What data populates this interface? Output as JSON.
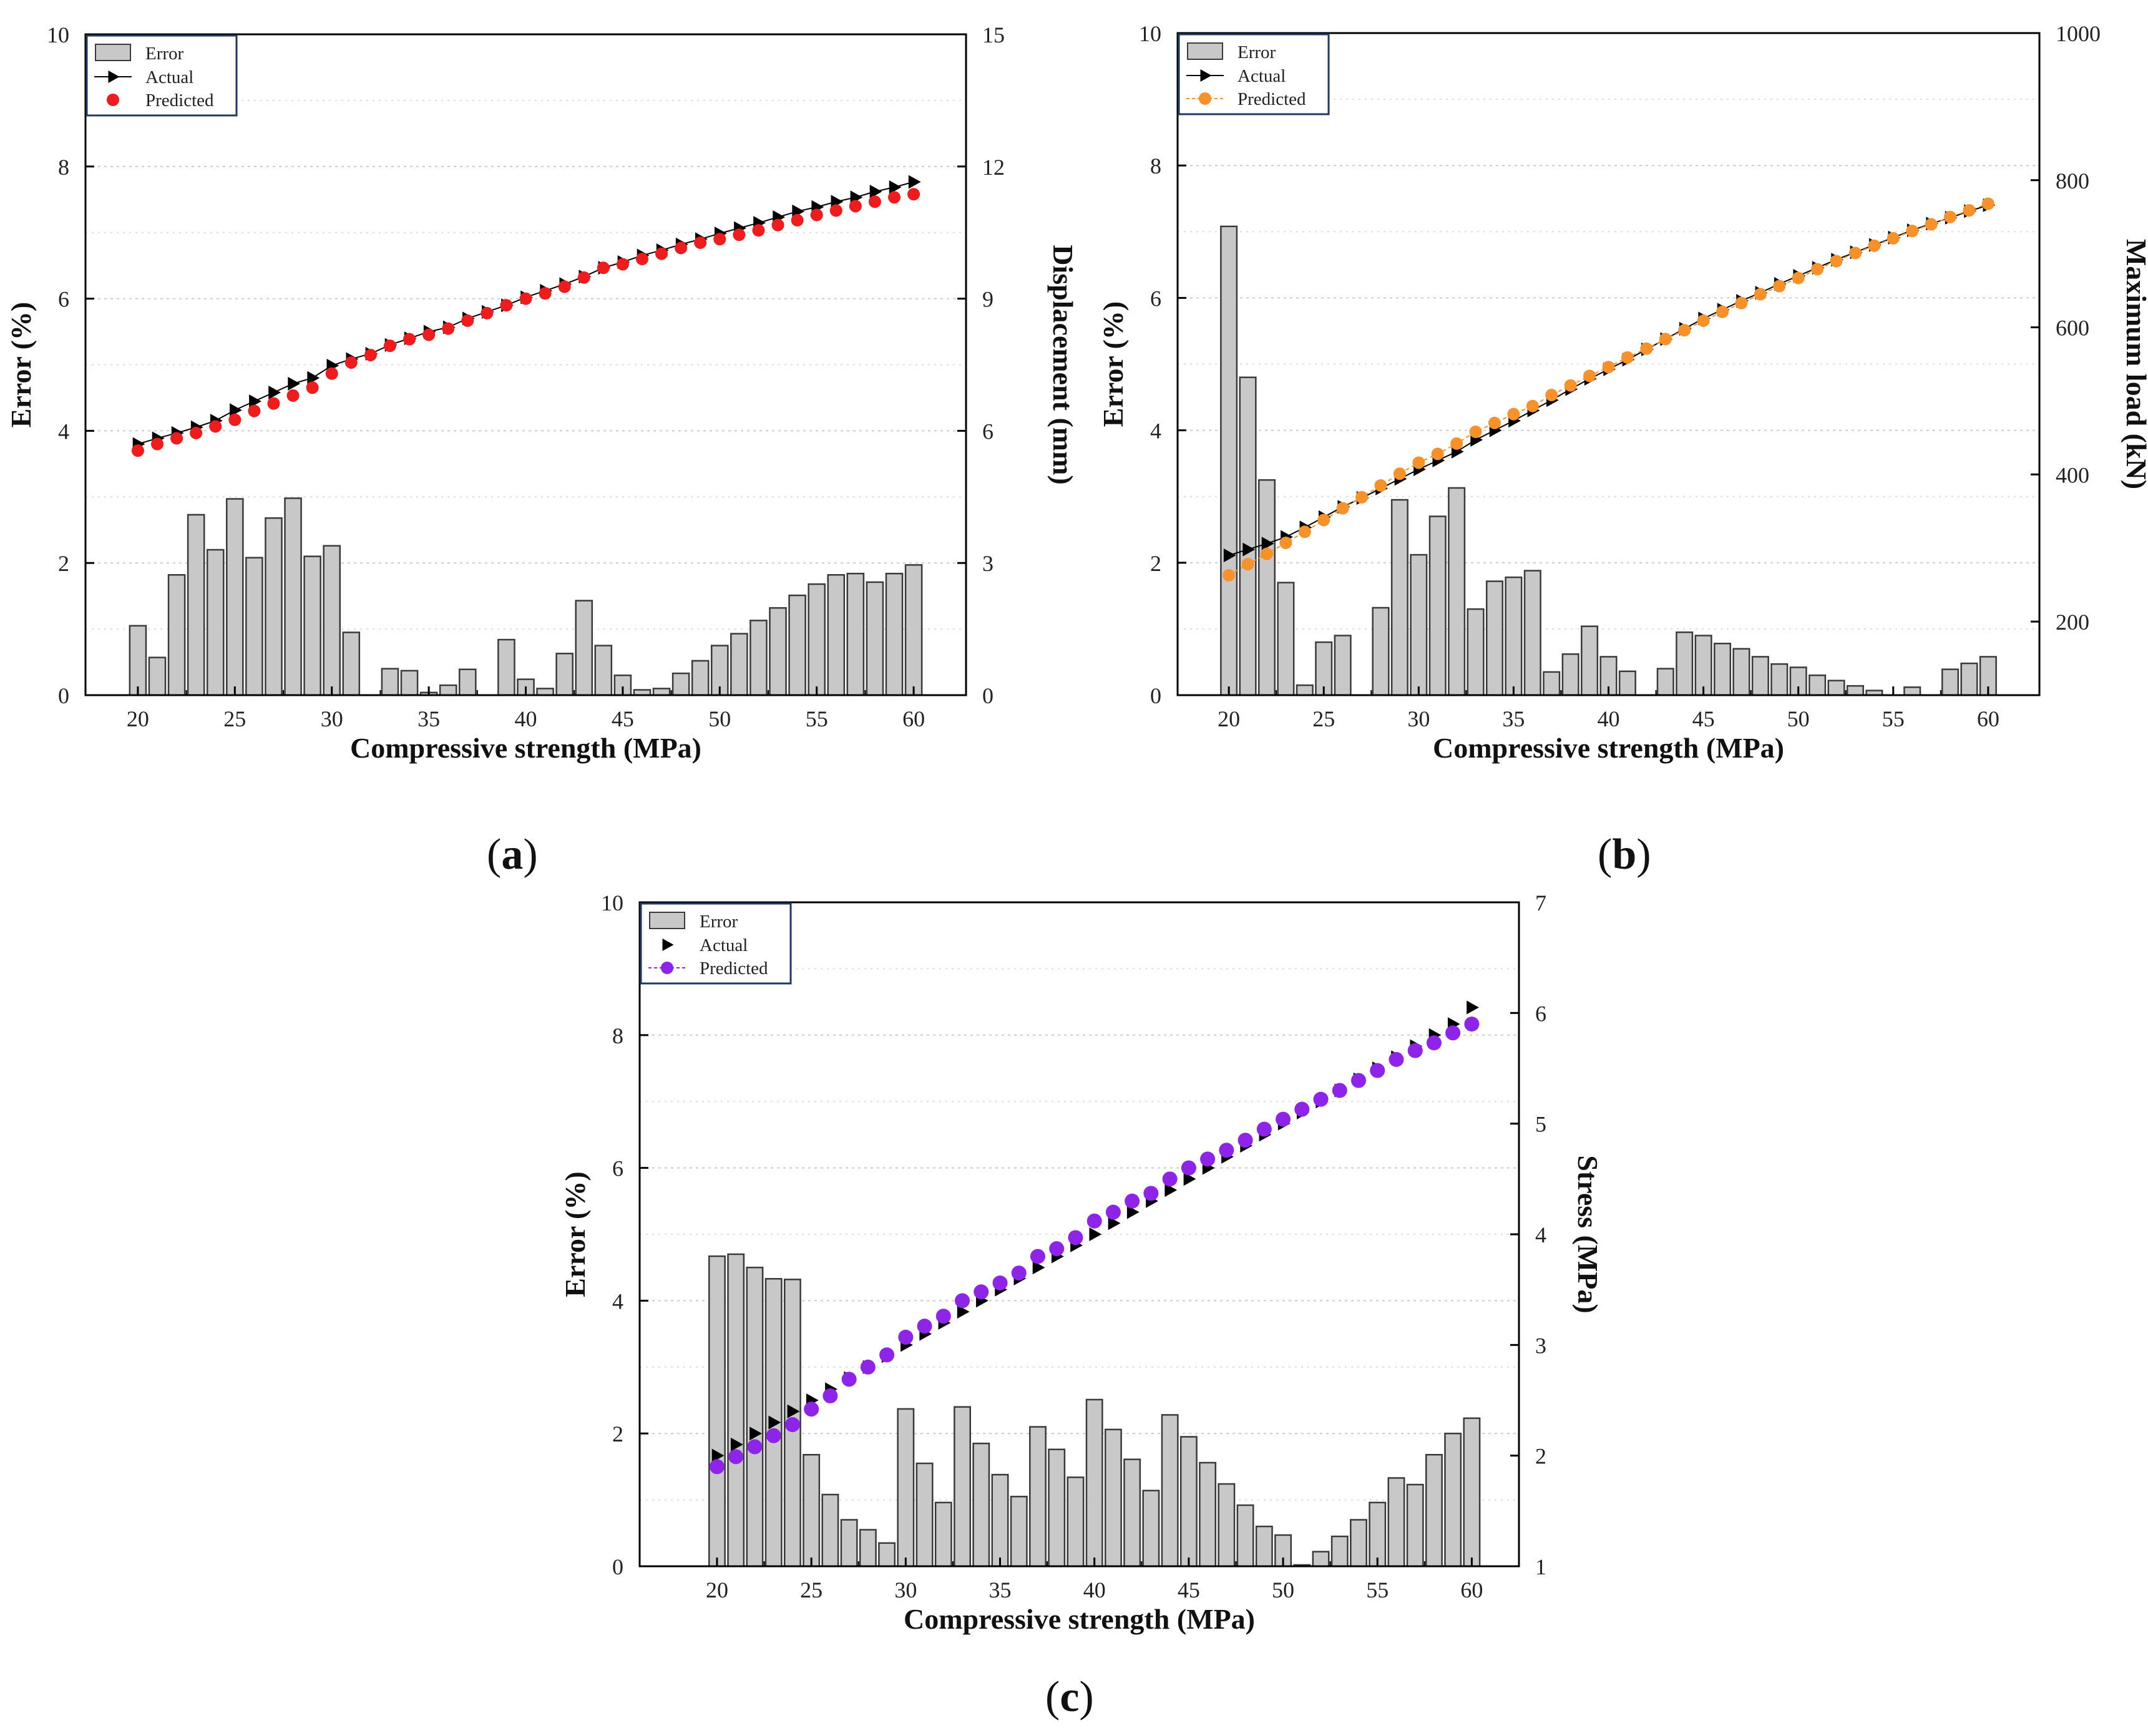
{
  "panels": [
    {
      "label_open": "(",
      "letter": "a",
      "label_close": ")"
    },
    {
      "label_open": "(",
      "letter": "b",
      "label_close": ")"
    },
    {
      "label_open": "(",
      "letter": "c",
      "label_close": ")"
    }
  ],
  "colors": {
    "bar_fill": "#c8c8c8",
    "bar_edge": "#3a3a3a",
    "actual": "#000000",
    "grid": "#cccccc",
    "legend_border": "#1f3a5f"
  },
  "chart_data": [
    {
      "id": "a",
      "type": "bar+line",
      "xlabel": "Compressive strength (MPa)",
      "ylabel_left": "Error (%)",
      "ylabel_right": "Displacement (mm)",
      "x_ticks": [
        20,
        25,
        30,
        35,
        40,
        45,
        50,
        55,
        60
      ],
      "xlim": [
        17.3,
        62.7
      ],
      "ylim_left": [
        0,
        10
      ],
      "y_ticks_left": [
        0,
        2,
        4,
        6,
        8,
        10
      ],
      "ylim_right": [
        0,
        15
      ],
      "y_ticks_right": [
        0,
        3,
        6,
        9,
        12,
        15
      ],
      "legend": [
        "Error",
        "Actual",
        "Predicted"
      ],
      "predicted_color": "#ee1c1c",
      "predicted_line": false,
      "actual_line": true,
      "x": [
        20,
        21,
        22,
        23,
        24,
        25,
        26,
        27,
        28,
        29,
        30,
        31,
        32,
        33,
        34,
        35,
        36,
        37,
        38,
        39,
        40,
        41,
        42,
        43,
        44,
        45,
        46,
        47,
        48,
        49,
        50,
        51,
        52,
        53,
        54,
        55,
        56,
        57,
        58,
        59,
        60
      ],
      "error": [
        1.05,
        0.57,
        1.82,
        2.73,
        2.2,
        2.97,
        2.08,
        2.68,
        2.98,
        2.1,
        2.26,
        0.95,
        0,
        0.4,
        0.37,
        0.04,
        0.15,
        0.39,
        0,
        0.84,
        0.24,
        0.1,
        0.63,
        1.43,
        0.75,
        0.3,
        0.08,
        0.1,
        0.33,
        0.52,
        0.75,
        0.93,
        1.13,
        1.32,
        1.51,
        1.68,
        1.82,
        1.84,
        1.71,
        1.84,
        1.97
      ],
      "actual": [
        5.7,
        5.83,
        5.95,
        6.08,
        6.23,
        6.47,
        6.67,
        6.87,
        7.07,
        7.2,
        7.48,
        7.63,
        7.75,
        7.95,
        8.1,
        8.25,
        8.35,
        8.55,
        8.7,
        8.85,
        9.03,
        9.18,
        9.33,
        9.5,
        9.7,
        9.83,
        9.98,
        10.1,
        10.23,
        10.35,
        10.48,
        10.6,
        10.72,
        10.85,
        10.98,
        11.08,
        11.2,
        11.3,
        11.43,
        11.53,
        11.65
      ],
      "predicted": [
        5.55,
        5.7,
        5.83,
        5.95,
        6.1,
        6.25,
        6.45,
        6.62,
        6.8,
        6.98,
        7.3,
        7.55,
        7.72,
        7.93,
        8.08,
        8.18,
        8.32,
        8.5,
        8.67,
        8.85,
        9.0,
        9.12,
        9.27,
        9.48,
        9.7,
        9.78,
        9.9,
        10.02,
        10.15,
        10.27,
        10.35,
        10.45,
        10.55,
        10.67,
        10.78,
        10.9,
        11.0,
        11.1,
        11.2,
        11.3,
        11.37
      ]
    },
    {
      "id": "b",
      "type": "bar+line",
      "xlabel": "Compressive strength (MPa)",
      "ylabel_left": "Error (%)",
      "ylabel_right": "Maximum load (kN)",
      "x_ticks": [
        20,
        25,
        30,
        35,
        40,
        45,
        50,
        55,
        60
      ],
      "xlim": [
        17.3,
        62.7
      ],
      "ylim_left": [
        0,
        10
      ],
      "y_ticks_left": [
        0,
        2,
        4,
        6,
        8,
        10
      ],
      "ylim_right": [
        100,
        1000
      ],
      "y_ticks_right": [
        200,
        400,
        600,
        800,
        1000
      ],
      "legend": [
        "Error",
        "Actual",
        "Predicted"
      ],
      "predicted_color": "#f7922a",
      "predicted_line": true,
      "actual_line": true,
      "x": [
        20,
        21,
        22,
        23,
        24,
        25,
        26,
        27,
        28,
        29,
        30,
        31,
        32,
        33,
        34,
        35,
        36,
        37,
        38,
        39,
        40,
        41,
        42,
        43,
        44,
        45,
        46,
        47,
        48,
        49,
        50,
        51,
        52,
        53,
        54,
        55,
        56,
        57,
        58,
        59,
        60
      ],
      "error": [
        7.08,
        4.8,
        3.25,
        1.7,
        0.15,
        0.8,
        0.9,
        0,
        1.32,
        2.95,
        2.12,
        2.7,
        3.13,
        1.3,
        1.72,
        1.78,
        1.88,
        0.35,
        0.62,
        1.04,
        0.58,
        0.36,
        0,
        0.4,
        0.95,
        0.9,
        0.78,
        0.7,
        0.58,
        0.47,
        0.42,
        0.3,
        0.22,
        0.14,
        0.07,
        0,
        0.12,
        0,
        0.39,
        0.48,
        0.58
      ],
      "actual": [
        290,
        298,
        306,
        315,
        328,
        342,
        356,
        368,
        381,
        394,
        407,
        419,
        431,
        447,
        460,
        473,
        487,
        501,
        516,
        530,
        543,
        556,
        570,
        584,
        598,
        612,
        624,
        636,
        647,
        659,
        670,
        681,
        692,
        702,
        712,
        722,
        732,
        741,
        749,
        758,
        766
      ],
      "predicted": [
        263,
        278,
        292,
        307,
        322,
        338,
        354,
        369,
        385,
        401,
        416,
        428,
        442,
        458,
        470,
        482,
        493,
        508,
        521,
        534,
        546,
        559,
        571,
        584,
        596,
        609,
        621,
        633,
        645,
        656,
        667,
        679,
        690,
        701,
        711,
        721,
        731,
        740,
        750,
        759,
        768
      ]
    },
    {
      "id": "c",
      "type": "bar+line",
      "xlabel": "Compressive strength (MPa)",
      "ylabel_left": "Error (%)",
      "ylabel_right": "Stress (MPa)",
      "x_ticks": [
        20,
        25,
        30,
        35,
        40,
        45,
        50,
        55,
        60
      ],
      "xlim": [
        15.9,
        62.5
      ],
      "ylim_left": [
        0,
        10
      ],
      "y_ticks_left": [
        0,
        2,
        4,
        6,
        8,
        10
      ],
      "ylim_right": [
        1,
        7
      ],
      "y_ticks_right": [
        1,
        2,
        3,
        4,
        5,
        6,
        7
      ],
      "legend": [
        "Error",
        "Actual",
        "Predicted"
      ],
      "predicted_color": "#8e24e8",
      "predicted_line": false,
      "actual_line": false,
      "x": [
        20,
        21,
        22,
        23,
        24,
        25,
        26,
        27,
        28,
        29,
        30,
        31,
        32,
        33,
        34,
        35,
        36,
        37,
        38,
        39,
        40,
        41,
        42,
        43,
        44,
        45,
        46,
        47,
        48,
        49,
        50,
        51,
        52,
        53,
        54,
        55,
        56,
        57,
        58,
        59,
        60
      ],
      "error": [
        4.67,
        4.7,
        4.5,
        4.33,
        4.32,
        1.68,
        1.08,
        0.7,
        0.55,
        0.35,
        2.37,
        1.55,
        0.96,
        2.4,
        1.85,
        1.38,
        1.05,
        2.1,
        1.76,
        1.34,
        2.51,
        2.06,
        1.61,
        1.14,
        2.28,
        1.95,
        1.56,
        1.24,
        0.92,
        0.6,
        0.47,
        0.02,
        0.22,
        0.45,
        0.7,
        0.96,
        1.33,
        1.23,
        1.68,
        2.0,
        2.23
      ],
      "actual": [
        2.0,
        2.1,
        2.2,
        2.3,
        2.4,
        2.5,
        2.6,
        2.7,
        2.8,
        2.9,
        3.0,
        3.1,
        3.2,
        3.3,
        3.4,
        3.5,
        3.6,
        3.7,
        3.8,
        3.9,
        4.0,
        4.1,
        4.2,
        4.3,
        4.4,
        4.5,
        4.6,
        4.7,
        4.8,
        4.9,
        5.0,
        5.1,
        5.2,
        5.3,
        5.4,
        5.5,
        5.6,
        5.7,
        5.8,
        5.9,
        6.05
      ],
      "predicted": [
        1.9,
        1.99,
        2.08,
        2.18,
        2.28,
        2.42,
        2.54,
        2.69,
        2.8,
        2.91,
        3.07,
        3.17,
        3.26,
        3.4,
        3.48,
        3.56,
        3.65,
        3.8,
        3.87,
        3.97,
        4.12,
        4.2,
        4.3,
        4.37,
        4.5,
        4.6,
        4.68,
        4.76,
        4.85,
        4.95,
        5.04,
        5.13,
        5.22,
        5.3,
        5.39,
        5.48,
        5.58,
        5.66,
        5.73,
        5.82,
        5.9
      ]
    }
  ]
}
